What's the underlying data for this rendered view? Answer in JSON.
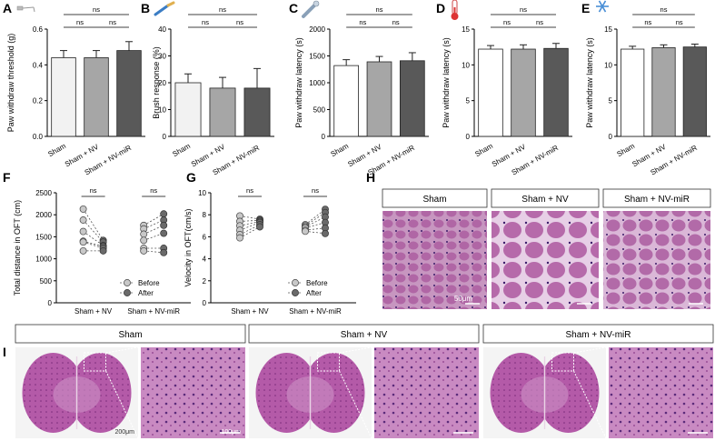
{
  "chart_data": [
    {
      "id": "A",
      "type": "bar",
      "ylabel": "Paw withdraw threshold (g)",
      "ylim": [
        0,
        0.6
      ],
      "yticks": [
        "0.0",
        "0.2",
        "0.4",
        "0.6"
      ],
      "categories": [
        "Sham",
        "Sham + NV",
        "Sham + NV-miR"
      ],
      "values": [
        0.44,
        0.44,
        0.48
      ],
      "errors": [
        0.04,
        0.04,
        0.05
      ],
      "colors": [
        "#f2f2f2",
        "#a6a6a6",
        "#595959"
      ],
      "sig": [
        "ns",
        "ns",
        "ns"
      ],
      "icon": "von-frey-filament-icon"
    },
    {
      "id": "B",
      "type": "bar",
      "ylabel": "Brush response (%)",
      "ylim": [
        0,
        40
      ],
      "yticks": [
        "0",
        "10",
        "20",
        "30",
        "40"
      ],
      "categories": [
        "Sham",
        "Sham + NV",
        "Sham + NV-miR"
      ],
      "values": [
        20,
        18,
        18
      ],
      "errors": [
        3.3,
        4,
        7.3
      ],
      "colors": [
        "#f2f2f2",
        "#a6a6a6",
        "#595959"
      ],
      "sig": [
        "ns",
        "ns",
        "ns"
      ],
      "icon": "brush-icon"
    },
    {
      "id": "C",
      "type": "bar",
      "ylabel": "Paw withdraw latency (s)",
      "ylim": [
        0,
        2000
      ],
      "yticks": [
        "0",
        "500",
        "1000",
        "1500",
        "2000"
      ],
      "categories": [
        "Sham",
        "Sham + NV",
        "Sham + NV-miR"
      ],
      "values": [
        1320,
        1390,
        1410
      ],
      "errors": [
        110,
        100,
        150
      ],
      "colors": [
        "#ffffff",
        "#a6a6a6",
        "#595959"
      ],
      "sig": [
        "ns",
        "ns",
        "ns"
      ],
      "icon": "pipette-icon"
    },
    {
      "id": "D",
      "type": "bar",
      "ylabel": "Paw withdraw latency (s)",
      "ylim": [
        0,
        15
      ],
      "yticks": [
        "0",
        "5",
        "10",
        "15"
      ],
      "categories": [
        "Sham",
        "Sham + NV",
        "Sham + NV-miR"
      ],
      "values": [
        12.2,
        12.2,
        12.3
      ],
      "errors": [
        0.5,
        0.6,
        0.7
      ],
      "colors": [
        "#ffffff",
        "#a6a6a6",
        "#595959"
      ],
      "sig": [
        "ns",
        "ns",
        "ns"
      ],
      "icon": "thermometer-icon"
    },
    {
      "id": "E",
      "type": "bar",
      "ylabel": "Paw withdraw latency (s)",
      "ylim": [
        0,
        15
      ],
      "yticks": [
        "0",
        "5",
        "10",
        "15"
      ],
      "categories": [
        "Sham",
        "Sham + NV",
        "Sham + NV-miR"
      ],
      "values": [
        12.2,
        12.4,
        12.5
      ],
      "errors": [
        0.4,
        0.4,
        0.4
      ],
      "colors": [
        "#ffffff",
        "#a6a6a6",
        "#595959"
      ],
      "sig": [
        "ns",
        "ns",
        "ns"
      ],
      "icon": "snowflake-icon"
    },
    {
      "id": "F",
      "type": "paired-scatter",
      "ylabel": "Total distance in OFT (cm)",
      "ylim": [
        0,
        2500
      ],
      "yticks": [
        "0",
        "500",
        "1000",
        "1500",
        "2000",
        "2500"
      ],
      "groups": [
        "Sham + NV",
        "Sham + NV-miR"
      ],
      "before": [
        [
          2130,
          1880,
          1620,
          1400,
          1380,
          1180
        ],
        [
          1760,
          1680,
          1560,
          1420,
          1240,
          1180
        ]
      ],
      "after": [
        [
          1420,
          1380,
          1300,
          1280,
          1240,
          1180
        ],
        [
          2020,
          1880,
          1760,
          1580,
          1240,
          1140
        ]
      ],
      "legend": [
        "Before",
        "After"
      ],
      "sig": [
        "ns",
        "ns"
      ]
    },
    {
      "id": "G",
      "type": "paired-scatter",
      "ylabel": "Velocity in OFT(cm/s)",
      "ylim": [
        0,
        10
      ],
      "yticks": [
        "0",
        "2",
        "4",
        "6",
        "8",
        "10"
      ],
      "groups": [
        "Sham + NV",
        "Sham + NV-miR"
      ],
      "before": [
        [
          7.9,
          7.4,
          7.0,
          6.6,
          6.2,
          5.9
        ],
        [
          7.1,
          7.0,
          6.9,
          6.8,
          6.6,
          6.5
        ]
      ],
      "after": [
        [
          7.6,
          7.5,
          7.4,
          7.3,
          7.1,
          6.9
        ],
        [
          8.5,
          8.2,
          7.8,
          7.3,
          6.8,
          6.3
        ]
      ],
      "legend": [
        "Before",
        "After"
      ],
      "sig": [
        "ns",
        "ns"
      ]
    }
  ],
  "panel_letters": {
    "A": "A",
    "B": "B",
    "C": "C",
    "D": "D",
    "E": "E",
    "F": "F",
    "G": "G",
    "H": "H",
    "I": "I"
  },
  "panel_h": {
    "headers": [
      "Sham",
      "Sham + NV",
      "Sham + NV-miR"
    ],
    "scale": "50μm"
  },
  "panel_i": {
    "headers": [
      "Sham",
      "Sham + NV",
      "Sham + NV-miR"
    ],
    "scale_low": "200μm",
    "scale_high": "100μm"
  }
}
